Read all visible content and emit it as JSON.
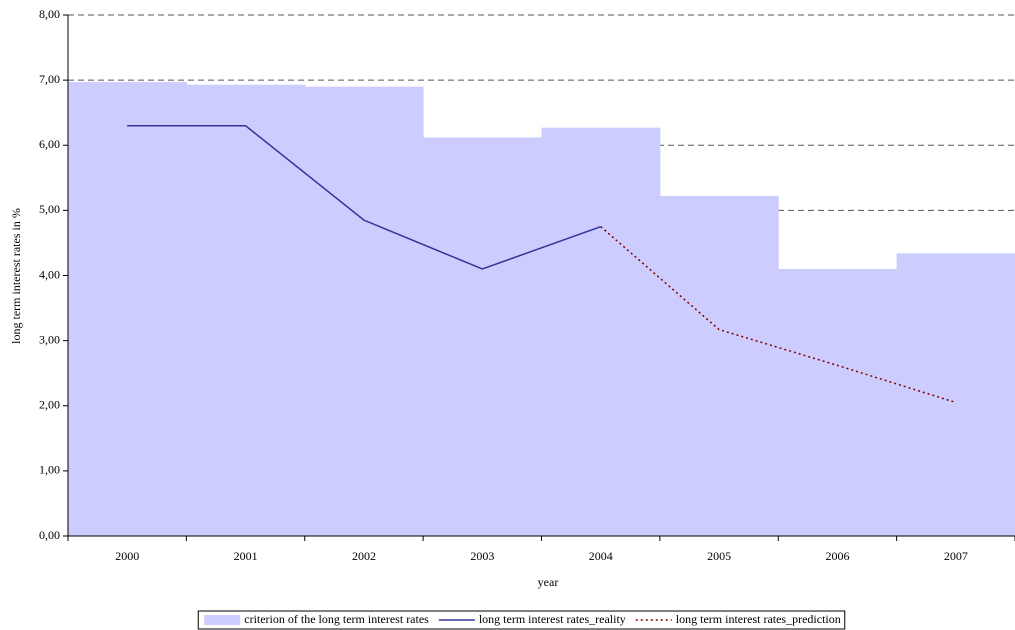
{
  "chart_data": {
    "type": "combo",
    "xlabel": "year",
    "ylabel": "long term interest rates in %",
    "categories": [
      "2000",
      "2001",
      "2002",
      "2003",
      "2004",
      "2005",
      "2006",
      "2007"
    ],
    "series": [
      {
        "name": "criterion of the long term interest rates",
        "type": "bar",
        "color": "#ccccff",
        "values": [
          6.97,
          6.93,
          6.9,
          6.12,
          6.27,
          5.22,
          4.1,
          4.34
        ]
      },
      {
        "name": "long term interest rates_reality",
        "type": "line",
        "color": "#333399",
        "line_style": "solid",
        "values": [
          6.3,
          6.3,
          4.85,
          4.1,
          4.75,
          null,
          null,
          null
        ]
      },
      {
        "name": "long term interest rates_prediction",
        "type": "line",
        "color": "#800000",
        "line_style": "dotted",
        "values": [
          null,
          null,
          null,
          null,
          4.75,
          3.17,
          2.62,
          2.05
        ]
      }
    ],
    "ylim": [
      0,
      8
    ],
    "yticks": [
      {
        "value": 0,
        "label": "0,00"
      },
      {
        "value": 1,
        "label": "1,00"
      },
      {
        "value": 2,
        "label": "2,00"
      },
      {
        "value": 3,
        "label": "3,00"
      },
      {
        "value": 4,
        "label": "4,00"
      },
      {
        "value": 5,
        "label": "5,00"
      },
      {
        "value": 6,
        "label": "6,00"
      },
      {
        "value": 7,
        "label": "7,00"
      },
      {
        "value": 8,
        "label": "8,00"
      }
    ],
    "grid": true,
    "legend": "bottom"
  }
}
